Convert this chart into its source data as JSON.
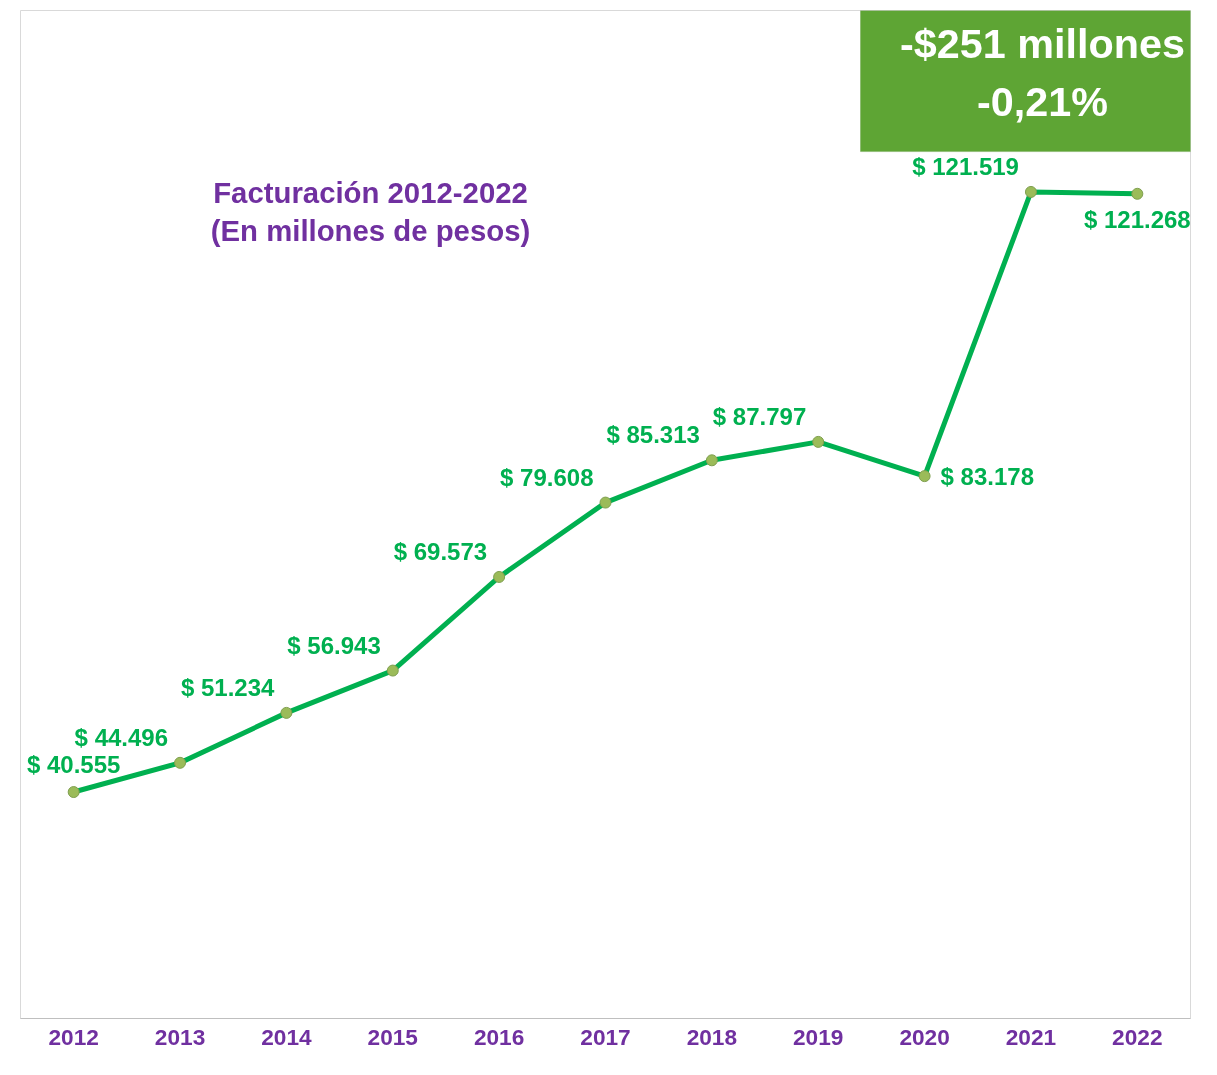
{
  "chart_data": {
    "type": "line",
    "title": "Facturación 2012-2022",
    "subtitle": "(En millones de pesos)",
    "categories": [
      "2012",
      "2013",
      "2014",
      "2015",
      "2016",
      "2017",
      "2018",
      "2019",
      "2020",
      "2021",
      "2022"
    ],
    "series": [
      {
        "color": "#00b050",
        "values": [
          40555,
          44496,
          51234,
          56943,
          69573,
          79608,
          85313,
          87797,
          83178,
          121519,
          121268
        ],
        "value_labels": [
          "$ 40.555",
          "$ 44.496",
          "$ 51.234",
          "$ 56.943",
          "$ 69.573",
          "$ 79.608",
          "$ 85.313",
          "$ 87.797",
          "$ 83.178",
          "$ 121.519",
          "$ 121.268"
        ]
      }
    ],
    "ylim": [
      10000,
      146000
    ],
    "tick_labels": "x",
    "grid": false,
    "marker": "circle",
    "line_style": "solid",
    "annotations": [
      "-$251 millones",
      "-0,21%"
    ]
  }
}
